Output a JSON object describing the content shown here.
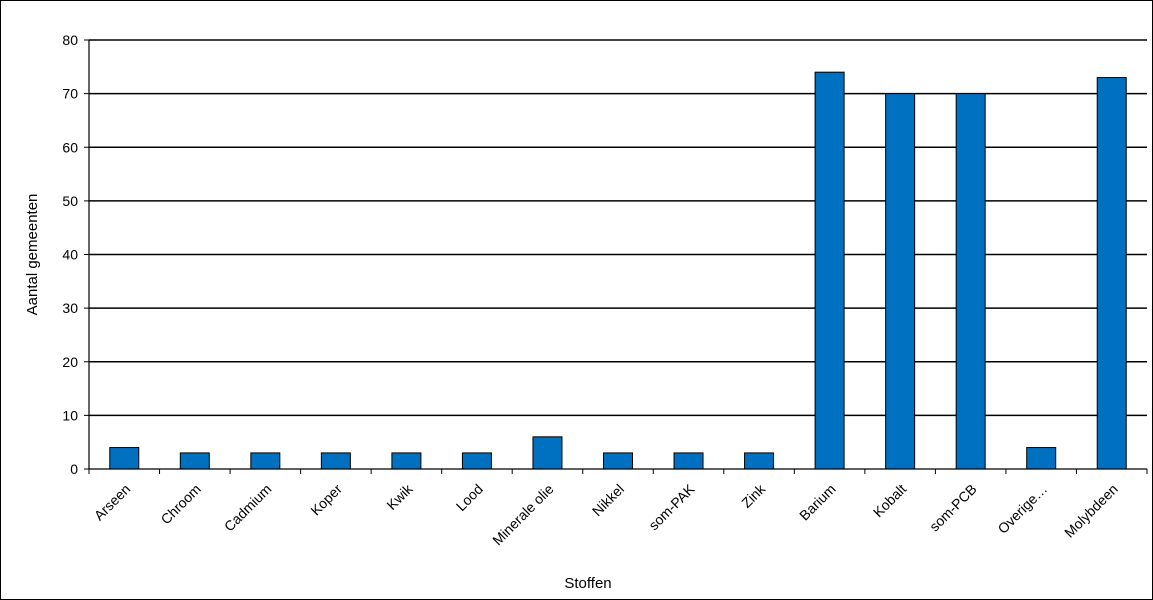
{
  "chart_data": {
    "type": "bar",
    "title": "",
    "xlabel": "Stoffen",
    "ylabel": "Aantal gemeenten",
    "categories": [
      "Arseen",
      "Chroom",
      "Cadmium",
      "Koper",
      "Kwik",
      "Lood",
      "Minerale olie",
      "Nikkel",
      "som-PAK",
      "Zink",
      "Barium",
      "Kobalt",
      "som-PCB",
      "Overige…",
      "Molybdeen"
    ],
    "values": [
      4,
      3,
      3,
      3,
      3,
      3,
      6,
      3,
      3,
      3,
      74,
      70,
      70,
      4,
      73
    ],
    "ylim": [
      0,
      80
    ],
    "yticks": [
      0,
      10,
      20,
      30,
      40,
      50,
      60,
      70,
      80
    ],
    "grid": true,
    "legend": "none",
    "bar_color": "#0070C0"
  }
}
